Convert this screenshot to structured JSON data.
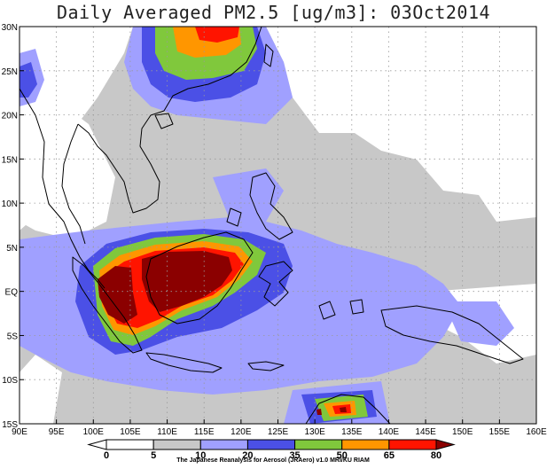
{
  "title": "Daily Averaged PM2.5 [ug/m3]: 03Oct2014",
  "map": {
    "lon_labels": [
      "90E",
      "95E",
      "100E",
      "105E",
      "110E",
      "115E",
      "120E",
      "125E",
      "130E",
      "135E",
      "140E",
      "145E",
      "150E",
      "155E",
      "160E"
    ],
    "lat_labels": [
      "30N",
      "25N",
      "20N",
      "15N",
      "10N",
      "5N",
      "EQ",
      "5S",
      "10S",
      "15S"
    ],
    "lon_range": [
      90,
      160
    ],
    "lat_range": [
      -15,
      30
    ],
    "grid": true
  },
  "colorbar": {
    "levels": [
      "0",
      "5",
      "10",
      "20",
      "35",
      "50",
      "65",
      "80"
    ],
    "colors": [
      "#ffffff",
      "#ffffff",
      "#c8c8c8",
      "#a0a0ff",
      "#4b50e6",
      "#80c83c",
      "#ff9600",
      "#ff1400",
      "#8b0000"
    ],
    "credit": "The Japanese Reanalysis for Aerosol (JRAero) v1.0 MRI/KU RIAM"
  }
}
